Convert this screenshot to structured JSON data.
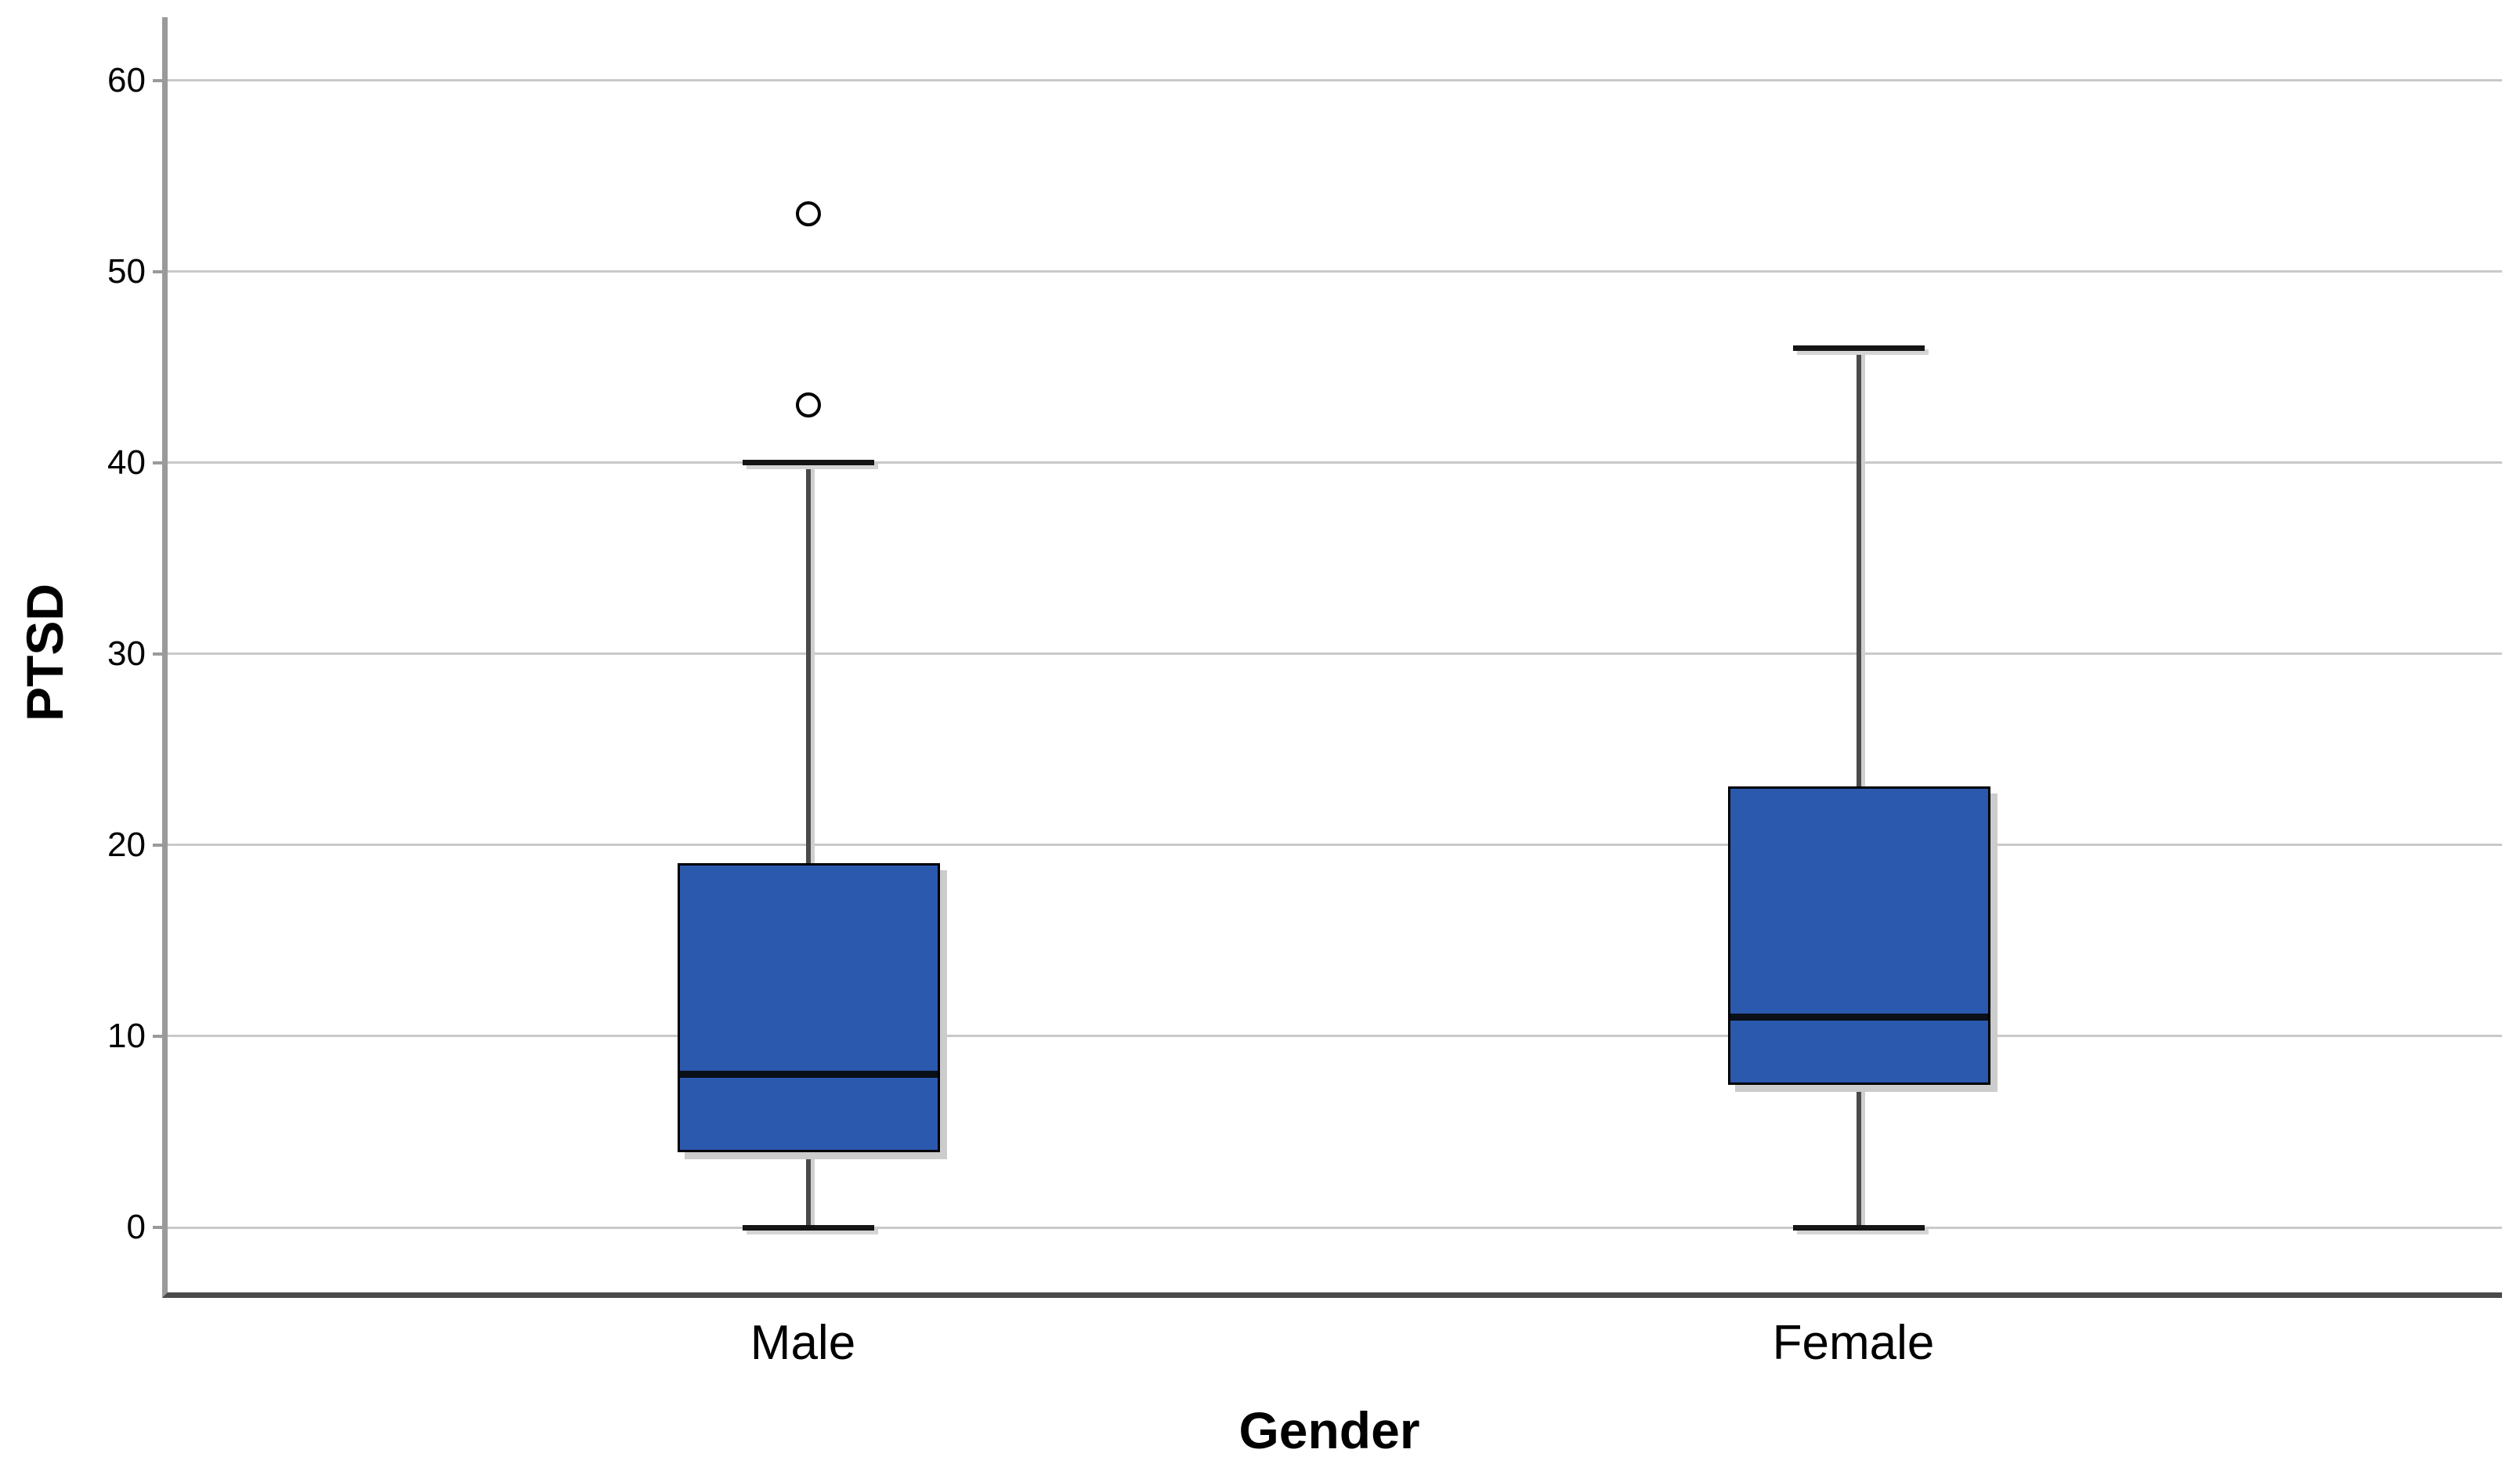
{
  "chart_data": {
    "type": "boxplot",
    "title": "",
    "xlabel": "Gender",
    "ylabel": "PTSD",
    "categories": [
      "Male",
      "Female"
    ],
    "y_ticks": [
      0,
      10,
      20,
      30,
      40,
      50,
      60
    ],
    "ylim": [
      -3.4,
      63.3
    ],
    "grid": "horizontal",
    "legend": "none",
    "series": [
      {
        "name": "Male",
        "whisker_min": 0,
        "q1": 4,
        "median": 8,
        "q3": 19,
        "whisker_max": 40,
        "outliers": [
          43,
          53
        ]
      },
      {
        "name": "Female",
        "whisker_min": 0,
        "q1": 7.5,
        "median": 11,
        "q3": 23,
        "whisker_max": 46,
        "outliers": []
      }
    ],
    "colors": {
      "box_fill": "#2B59AE",
      "box_border": "#000000",
      "median": "#0a0f18",
      "whisker": "#4a4a4a",
      "cap": "#151515",
      "outlier_stroke": "#000000",
      "gridline": "#c9c9c9",
      "y_axis": "#9a9a9a",
      "x_axis": "#4a4a4a",
      "text": "#000000",
      "background": "#ffffff"
    }
  }
}
